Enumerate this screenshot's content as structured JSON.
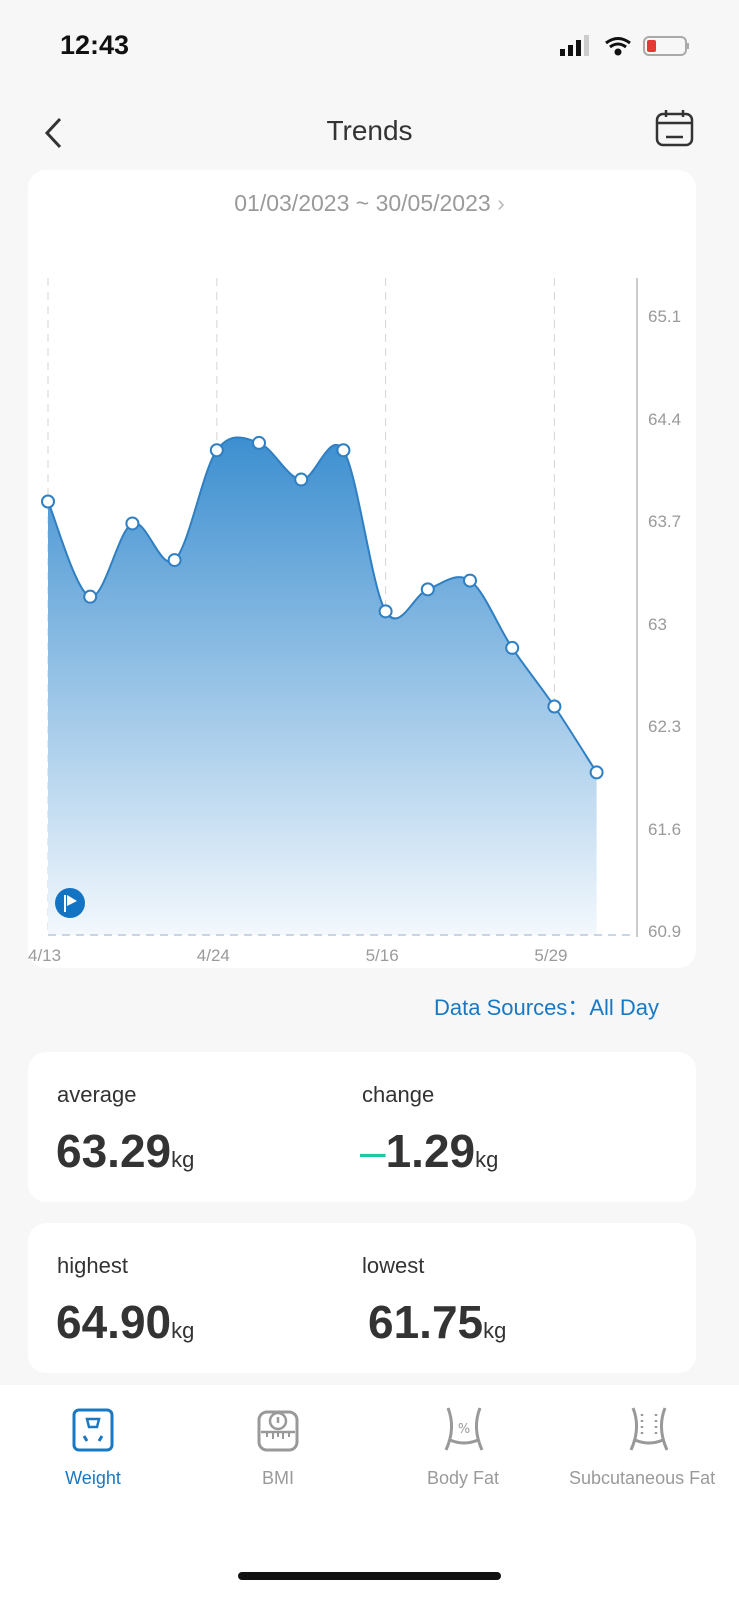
{
  "status_bar": {
    "time": "12:43",
    "battery_color": "#e53935"
  },
  "header": {
    "title": "Trends",
    "back_icon": "chevron-left-icon",
    "calendar_icon": "calendar-icon"
  },
  "date_range": {
    "label": "01/03/2023 ~ 30/05/2023",
    "arrow": "›"
  },
  "chart_data": {
    "type": "area",
    "y_ticks": [
      "65.1",
      "64.4",
      "63.7",
      "63",
      "62.3",
      "61.6",
      "60.9"
    ],
    "ylim": [
      60.9,
      65.1
    ],
    "x_tick_labels": [
      {
        "index": 0,
        "label": "4/13"
      },
      {
        "index": 4,
        "label": "4/24"
      },
      {
        "index": 8,
        "label": "5/16"
      },
      {
        "index": 12,
        "label": "5/29"
      }
    ],
    "values": [
      63.84,
      63.19,
      63.69,
      63.44,
      64.19,
      64.24,
      63.99,
      64.19,
      63.09,
      63.24,
      63.3,
      62.84,
      62.44,
      61.99
    ],
    "y_axis_position": "right",
    "grid": "vertical dashed",
    "color": "#3d8fd0"
  },
  "data_sources": {
    "label": "Data Sources：",
    "value": "All Day"
  },
  "stats": {
    "average": {
      "label": "average",
      "value": "63.29",
      "unit": "kg"
    },
    "change": {
      "label": "change",
      "sign": "–",
      "value": "1.29",
      "unit": "kg",
      "sign_color": "#1ec8a5"
    },
    "highest": {
      "label": "highest",
      "value": "64.90",
      "unit": "kg"
    },
    "lowest": {
      "label": "lowest",
      "value": "61.75",
      "unit": "kg"
    }
  },
  "tabs": [
    {
      "label": "Weight",
      "icon": "scale-icon",
      "active": true
    },
    {
      "label": "BMI",
      "icon": "bmi-scale-icon",
      "active": false
    },
    {
      "label": "Body Fat",
      "icon": "body-fat-icon",
      "active": false
    },
    {
      "label": "Subcutaneous Fat",
      "icon": "subcutaneous-fat-icon",
      "active": false
    }
  ]
}
